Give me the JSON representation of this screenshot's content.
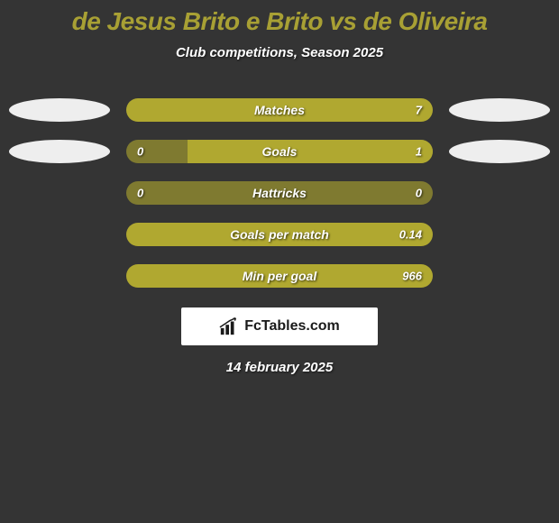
{
  "title": {
    "text": "de Jesus Brito e Brito vs de Oliveira",
    "color": "#a8a034",
    "fontsize": 28
  },
  "subtitle": "Club competitions, Season 2025",
  "date": "14 february 2025",
  "colors": {
    "background": "#343434",
    "bar_base": "#7f7a30",
    "bar_highlight": "#b0a830",
    "avatar": "#eeeeee",
    "text": "#ffffff"
  },
  "brand": {
    "text": "FcTables.com"
  },
  "stats": [
    {
      "label": "Matches",
      "left_value": "",
      "right_value": "7",
      "left_width_pct": 0,
      "right_width_pct": 100,
      "base_color": "#b0a830",
      "show_left_avatar": true,
      "show_right_avatar": true
    },
    {
      "label": "Goals",
      "left_value": "0",
      "right_value": "1",
      "left_width_pct": 20,
      "right_width_pct": 80,
      "base_color": "#7f7a30",
      "right_color": "#b0a830",
      "show_left_avatar": true,
      "show_right_avatar": true
    },
    {
      "label": "Hattricks",
      "left_value": "0",
      "right_value": "0",
      "left_width_pct": 0,
      "right_width_pct": 0,
      "base_color": "#7f7a30",
      "show_left_avatar": false,
      "show_right_avatar": false
    },
    {
      "label": "Goals per match",
      "left_value": "",
      "right_value": "0.14",
      "left_width_pct": 0,
      "right_width_pct": 100,
      "base_color": "#b0a830",
      "show_left_avatar": false,
      "show_right_avatar": false
    },
    {
      "label": "Min per goal",
      "left_value": "",
      "right_value": "966",
      "left_width_pct": 0,
      "right_width_pct": 100,
      "base_color": "#b0a830",
      "show_left_avatar": false,
      "show_right_avatar": false
    }
  ]
}
